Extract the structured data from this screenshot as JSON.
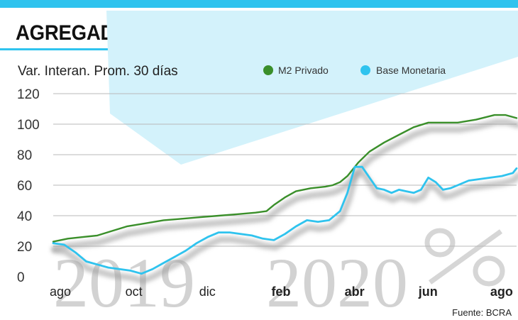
{
  "header": {
    "title": "AGREGADOS MONETARIOS EN LA MIRA"
  },
  "source": "Fuente: BCRA",
  "colors": {
    "accent": "#2fc3ee",
    "m2": "#3a8f2a",
    "base": "#2fc3ee",
    "grid": "#b8b8b8"
  },
  "chart_data": {
    "type": "line",
    "title": "AGREGADOS MONETARIOS EN LA MIRA",
    "subtitle": "Var. Interan. Prom. 30 días",
    "xlabel": "",
    "ylabel": "Var. Interan. Prom. 30 días",
    "ylim": [
      0,
      120
    ],
    "yticks": [
      0,
      20,
      40,
      60,
      80,
      100,
      120
    ],
    "xlim": [
      0,
      12.6
    ],
    "x_ticks": [
      {
        "label": "ago",
        "x": 0,
        "bold": false
      },
      {
        "label": "oct",
        "x": 2,
        "bold": false
      },
      {
        "label": "dic",
        "x": 4,
        "bold": false
      },
      {
        "label": "feb",
        "x": 6,
        "bold": true
      },
      {
        "label": "abr",
        "x": 8,
        "bold": true
      },
      {
        "label": "jun",
        "x": 10,
        "bold": true
      },
      {
        "label": "ago",
        "x": 12,
        "bold": true
      }
    ],
    "watermark": {
      "left_year": "2019",
      "right_year": "2020",
      "symbol": "%"
    },
    "series": [
      {
        "name": "M2 Privado",
        "color": "#3a8f2a",
        "x": [
          0,
          0.4,
          0.8,
          1.2,
          1.6,
          2,
          2.5,
          3,
          3.5,
          4,
          4.5,
          5,
          5.5,
          5.8,
          6,
          6.3,
          6.6,
          7,
          7.4,
          7.6,
          7.8,
          8,
          8.3,
          8.6,
          9,
          9.4,
          9.8,
          10.2,
          10.6,
          11,
          11.5,
          12,
          12.3,
          12.6
        ],
        "values": [
          23,
          25,
          26,
          27,
          30,
          33,
          35,
          37,
          38,
          39,
          40,
          41,
          42,
          43,
          47,
          52,
          56,
          58,
          59,
          60,
          62,
          66,
          75,
          82,
          88,
          93,
          98,
          101,
          101,
          101,
          103,
          106,
          106,
          104
        ]
      },
      {
        "name": "Base Monetaria",
        "color": "#2fc3ee",
        "x": [
          0,
          0.3,
          0.6,
          0.9,
          1.2,
          1.5,
          1.8,
          2.1,
          2.4,
          2.7,
          3,
          3.3,
          3.6,
          3.9,
          4.2,
          4.5,
          4.8,
          5.1,
          5.4,
          5.7,
          6,
          6.3,
          6.6,
          6.9,
          7.2,
          7.5,
          7.8,
          8,
          8.2,
          8.4,
          8.6,
          8.8,
          9,
          9.2,
          9.4,
          9.6,
          9.8,
          10,
          10.2,
          10.4,
          10.6,
          10.8,
          11,
          11.3,
          11.6,
          11.9,
          12.2,
          12.5,
          12.6
        ],
        "values": [
          22,
          21,
          16,
          10,
          8,
          6,
          5,
          4,
          2,
          5,
          9,
          13,
          17,
          22,
          26,
          29,
          29,
          28,
          27,
          25,
          24,
          28,
          33,
          37,
          36,
          37,
          43,
          55,
          72,
          72,
          65,
          58,
          57,
          55,
          57,
          56,
          55,
          57,
          65,
          62,
          57,
          58,
          60,
          63,
          64,
          65,
          66,
          68,
          71
        ]
      }
    ]
  }
}
